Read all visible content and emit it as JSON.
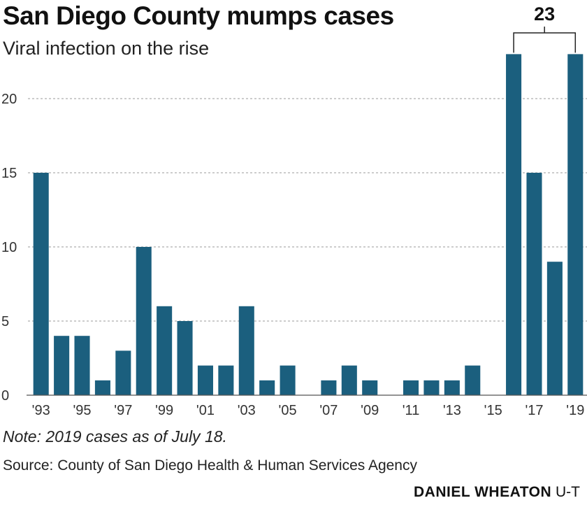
{
  "title": "San Diego County mumps cases",
  "subtitle": "Viral infection on the rise",
  "note": "Note: 2019 cases as of July 18.",
  "source": "Source: County of San Diego Health & Human Services Agency",
  "credit": {
    "name": "DANIEL WHEATON",
    "org": "U-T"
  },
  "bar_color": "#1b5f7e",
  "chart_data": {
    "type": "bar",
    "categories": [
      "1993",
      "1994",
      "1995",
      "1996",
      "1997",
      "1998",
      "1999",
      "2000",
      "2001",
      "2002",
      "2003",
      "2004",
      "2005",
      "2006",
      "2007",
      "2008",
      "2009",
      "2010",
      "2011",
      "2012",
      "2013",
      "2014",
      "2015",
      "2016",
      "2017",
      "2018",
      "2019"
    ],
    "values": [
      15,
      4,
      4,
      1,
      3,
      10,
      6,
      5,
      2,
      2,
      6,
      1,
      2,
      0,
      1,
      2,
      1,
      0,
      1,
      1,
      1,
      2,
      0,
      23,
      15,
      9,
      23
    ],
    "x_tick_labels": [
      "'93",
      "'95",
      "'97",
      "'99",
      "'01",
      "'03",
      "'05",
      "'07",
      "'09",
      "'11",
      "'13",
      "'15",
      "'17",
      "'19"
    ],
    "y_ticks": [
      0,
      5,
      10,
      15,
      20
    ],
    "ylim": [
      0,
      24.5
    ],
    "grid": true,
    "annotation": {
      "text": "23",
      "categories": [
        "2016",
        "2019"
      ]
    }
  }
}
